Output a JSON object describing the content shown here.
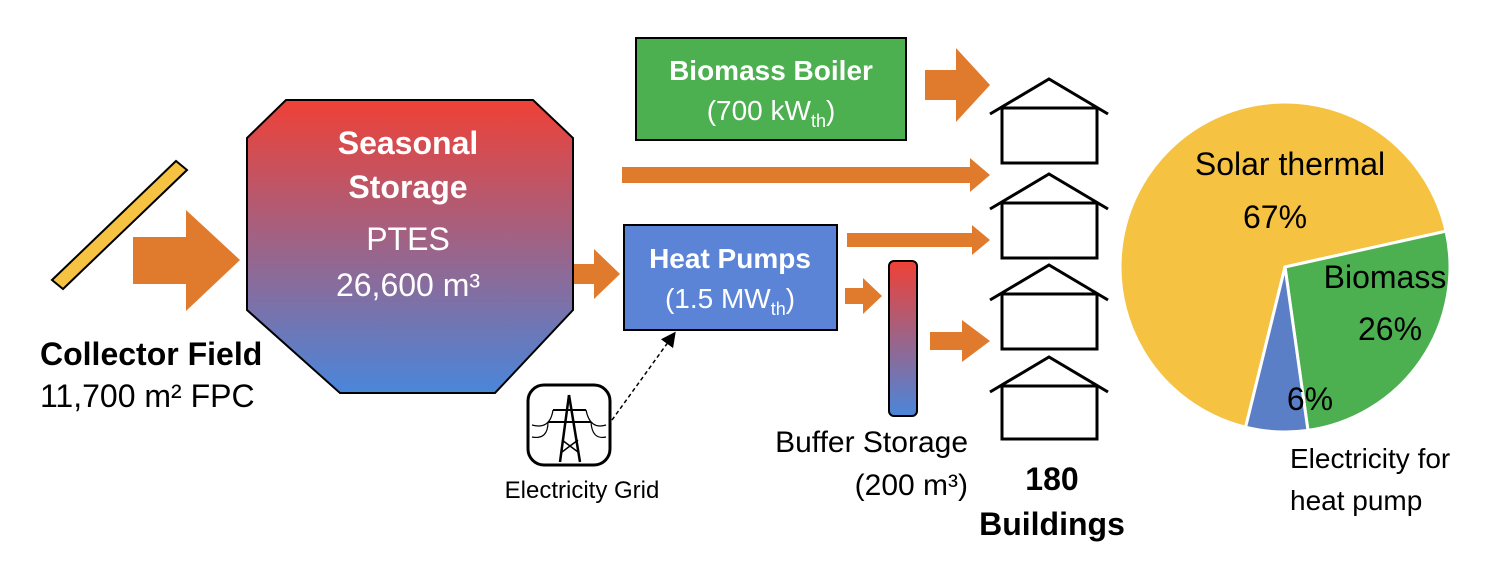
{
  "collector": {
    "title": "Collector Field",
    "area": "11,700 m² FPC"
  },
  "storage": {
    "line1": "Seasonal",
    "line2": "Storage",
    "type": "PTES",
    "volume": "26,600 m³"
  },
  "boiler": {
    "title": "Biomass Boiler",
    "capacity_open": "(700 kW",
    "capacity_sub": "th",
    "capacity_close": ")"
  },
  "heat_pumps": {
    "title": "Heat Pumps",
    "capacity_open": "(1.5 MW",
    "capacity_sub": "th",
    "capacity_close": ")"
  },
  "grid": {
    "label": "Electricity Grid"
  },
  "buffer": {
    "line1": "Buffer Storage",
    "line2": "(200 m³)"
  },
  "buildings": {
    "count": "180",
    "label": "Buildings"
  },
  "pie": {
    "solar_label": "Solar thermal",
    "solar_pct": "67%",
    "biomass_label": "Biomass",
    "biomass_pct": "26%",
    "electricity_pct": "6%",
    "electricity_line1": "Electricity for",
    "electricity_line2": "heat pump"
  },
  "chart_data": {
    "type": "pie",
    "categories": [
      "Solar thermal",
      "Biomass",
      "Electricity for heat pump"
    ],
    "values": [
      67,
      26,
      6
    ]
  },
  "colors": {
    "arrow": "#E07B2E",
    "collector": "#F5C242",
    "boiler": "#4CAF50",
    "heat_pumps": "#5B84D6",
    "storage_top": "#EF4136",
    "storage_bottom": "#4A86DA",
    "pie_solar": "#F5C242",
    "pie_biomass": "#4CAF50",
    "pie_electricity": "#5B7FC7"
  }
}
